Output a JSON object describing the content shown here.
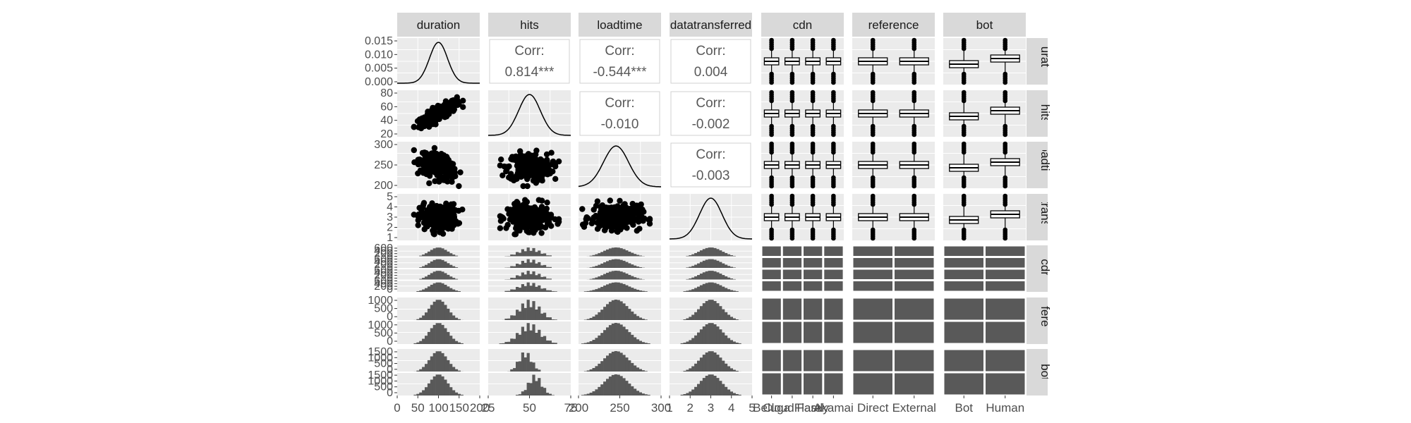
{
  "chart_data": {
    "type": "scatter_matrix",
    "variables": [
      "duration",
      "hits",
      "loadtime",
      "datatransferred",
      "cdn",
      "reference",
      "bot"
    ],
    "col_strip_labels": [
      "duration",
      "hits",
      "loadtime",
      "datatransferred",
      "cdn",
      "reference",
      "bot"
    ],
    "row_strip_labels": [
      "duration",
      "hits",
      "loadtime",
      "datatransferred",
      "cdn",
      "reference",
      "bot"
    ],
    "continuous": {
      "duration": {
        "mean": 100,
        "sd": 22,
        "range": [
          0,
          200
        ]
      },
      "hits": {
        "mean": 50,
        "sd": 10,
        "range": [
          12,
          88
        ]
      },
      "loadtime": {
        "mean": 240,
        "sd": 25,
        "range": [
          165,
          330
        ]
      },
      "datatransferred": {
        "mean": 3,
        "sd": 0.6,
        "range": [
          0.8,
          5.2
        ]
      }
    },
    "categorical": {
      "cdn": [
        "Beluga",
        "CloudFlare",
        "Fastly",
        "Akamai"
      ],
      "reference": [
        "Direct",
        "External"
      ],
      "bot": [
        "Bot",
        "Human"
      ]
    },
    "correlations": [
      {
        "row": "duration",
        "col": "hits",
        "label": "Corr:",
        "value": "0.814***"
      },
      {
        "row": "duration",
        "col": "loadtime",
        "label": "Corr:",
        "value": "-0.544***"
      },
      {
        "row": "duration",
        "col": "datatransferred",
        "label": "Corr:",
        "value": "0.004"
      },
      {
        "row": "hits",
        "col": "loadtime",
        "label": "Corr:",
        "value": "-0.010"
      },
      {
        "row": "hits",
        "col": "datatransferred",
        "label": "Corr:",
        "value": "-0.002"
      },
      {
        "row": "loadtime",
        "col": "datatransferred",
        "label": "Corr:",
        "value": "-0.003"
      }
    ],
    "y_ticks": {
      "duration": [
        "0.000",
        "0.005",
        "0.010",
        "0.015"
      ],
      "hits": [
        "20",
        "40",
        "60",
        "80"
      ],
      "loadtime": [
        "200",
        "250",
        "300"
      ],
      "datatransferred": [
        "1",
        "2",
        "3",
        "4",
        "5"
      ],
      "cdn": [
        "0",
        "200",
        "400",
        "600",
        "0",
        "200",
        "400",
        "600",
        "0",
        "200",
        "400",
        "600",
        "0",
        "200",
        "400",
        "600"
      ],
      "reference": [
        "0",
        "500",
        "1000",
        "0",
        "500",
        "1000"
      ],
      "bot": [
        "0",
        "500",
        "1000",
        "1500",
        "0",
        "500",
        "1000",
        "1500"
      ]
    },
    "x_ticks": {
      "duration": [
        "0",
        "50",
        "100",
        "150",
        "200"
      ],
      "hits": [
        "25",
        "50",
        "75"
      ],
      "loadtime": [
        "200",
        "250",
        "300"
      ],
      "datatransferred": [
        "1",
        "2",
        "3",
        "4",
        "5"
      ],
      "cdn": [
        "Beluga",
        "CloudFlare",
        "Fastly",
        "Akamai"
      ],
      "reference": [
        "Direct",
        "External"
      ],
      "bot": [
        "Bot",
        "Human"
      ]
    },
    "colors": {
      "panel_bg": "#ebebeb",
      "grid": "#ffffff",
      "strip_bg": "#d9d9d9",
      "mark": "#000000",
      "bar": "#595959",
      "text_grey": "#4d4d4d",
      "corr_text": "#595959"
    },
    "grid": true
  }
}
